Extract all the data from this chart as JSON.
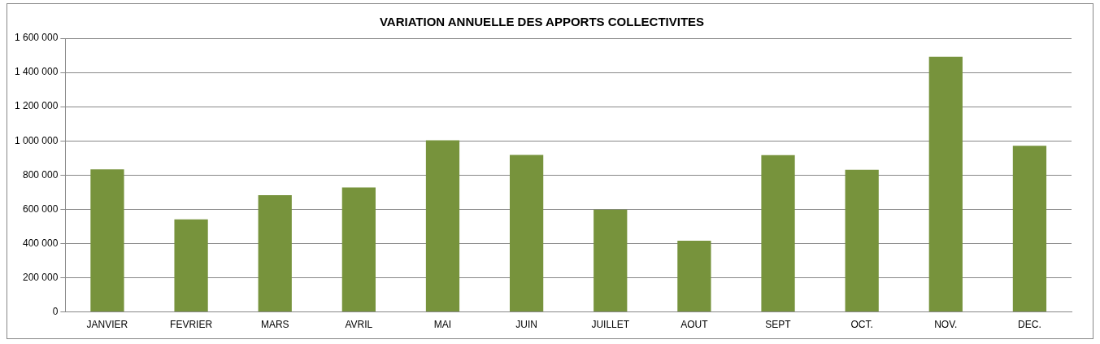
{
  "chart_data": {
    "type": "bar",
    "title": "VARIATION ANNUELLE DES APPORTS COLLECTIVITES",
    "categories": [
      "JANVIER",
      "FEVRIER",
      "MARS",
      "AVRIL",
      "MAI",
      "JUIN",
      "JUILLET",
      "AOUT",
      "SEPT",
      "OCT.",
      "NOV.",
      "DEC."
    ],
    "values": [
      833000,
      541000,
      682000,
      728000,
      1003000,
      918000,
      598000,
      416000,
      917000,
      831000,
      1492000,
      971000
    ],
    "color": "#77933c",
    "ylim": [
      0,
      1600000
    ],
    "yticks": [
      {
        "value": 0,
        "label": "0"
      },
      {
        "value": 200000,
        "label": "200 000"
      },
      {
        "value": 400000,
        "label": "400 000"
      },
      {
        "value": 600000,
        "label": "600 000"
      },
      {
        "value": 800000,
        "label": "800 000"
      },
      {
        "value": 1000000,
        "label": "1 000 000"
      },
      {
        "value": 1200000,
        "label": "1 200 000"
      },
      {
        "value": 1400000,
        "label": "1 400 000"
      },
      {
        "value": 1600000,
        "label": "1 600 000"
      }
    ],
    "grid": "y"
  }
}
